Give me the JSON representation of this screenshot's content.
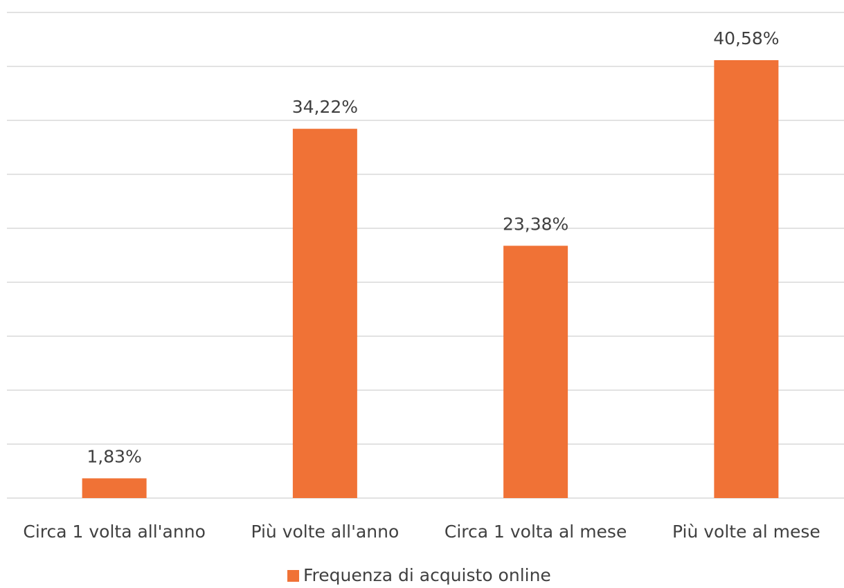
{
  "chart_data": {
    "type": "bar",
    "categories": [
      "Circa 1 volta all'anno",
      "Più volte all'anno",
      "Circa 1 volta al mese",
      "Più volte al mese"
    ],
    "series": [
      {
        "name": "Frequenza di acquisto online",
        "color": "#f07236",
        "values": [
          1.83,
          34.22,
          23.38,
          40.58
        ],
        "value_labels": [
          "1,83%",
          "34,22%",
          "23,38%",
          "40,58%"
        ]
      }
    ],
    "ylim": [
      0,
      45
    ],
    "yticks": [
      0,
      5,
      10,
      15,
      20,
      25,
      30,
      35,
      40,
      45
    ],
    "grid": true,
    "legend": "bottom"
  }
}
